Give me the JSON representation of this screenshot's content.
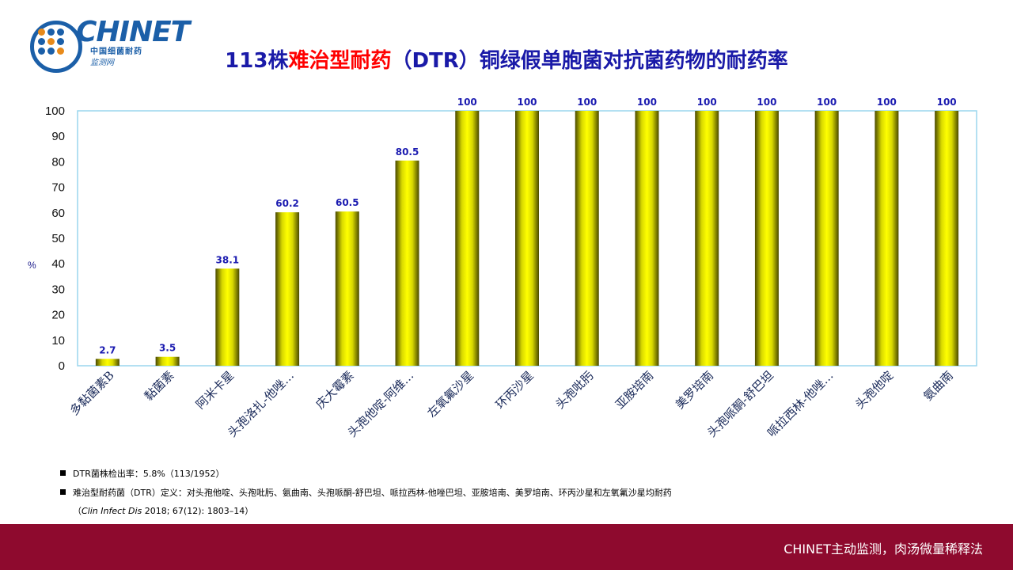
{
  "logo": {
    "name": "CHINET",
    "line1": "中国细菌耐药",
    "line2": "监测网"
  },
  "title": {
    "part1": "113株",
    "part2": "难治型耐药",
    "part3": "（DTR）铜绿假单胞菌对抗菌药物的耐药率"
  },
  "colors": {
    "title_blue": "#1a1aa8",
    "title_red": "#ff0000",
    "bar_fill": "#ffff00",
    "bar_shadow": "#5a5a00",
    "label_blue": "#1a1ab0",
    "footer_bg": "#8e0a2e"
  },
  "chart_data": {
    "type": "bar",
    "title": "113株难治型耐药（DTR）铜绿假单胞菌对抗菌药物的耐药率",
    "xlabel": "",
    "ylabel": "%",
    "ylim": [
      0,
      100
    ],
    "yticks": [
      0,
      10,
      20,
      30,
      40,
      50,
      60,
      70,
      80,
      90,
      100
    ],
    "categories": [
      "多黏菌素B",
      "黏菌素",
      "阿米卡星",
      "头孢洛扎-他唑…",
      "庆大霉素",
      "头孢他啶-阿维…",
      "左氧氟沙星",
      "环丙沙星",
      "头孢吡肟",
      "亚胺培南",
      "美罗培南",
      "头孢哌酮-舒巴坦",
      "哌拉西林-他唑…",
      "头孢他啶",
      "氨曲南"
    ],
    "values": [
      2.7,
      3.5,
      38.1,
      60.2,
      60.5,
      80.5,
      100,
      100,
      100,
      100,
      100,
      100,
      100,
      100,
      100
    ],
    "data_labels": [
      "2.7",
      "3.5",
      "38.1",
      "60.2",
      "60.5",
      "80.5",
      "100",
      "100",
      "100",
      "100",
      "100",
      "100",
      "100",
      "100",
      "100"
    ],
    "grid": false
  },
  "notes": [
    "DTR菌株检出率：5.8%（113/1952）",
    "难治型耐药菌（DTR）定义：对头孢他啶、头孢吡肟、氨曲南、头孢哌酮-舒巴坦、哌拉西林-他唑巴坦、亚胺培南、美罗培南、环丙沙星和左氧氟沙星均耐药"
  ],
  "citation": {
    "open": "（",
    "journal": "Clin Infect Dis",
    "rest": " 2018; 67(12): 1803–14）"
  },
  "footer": "CHINET主动监测，肉汤微量稀释法"
}
